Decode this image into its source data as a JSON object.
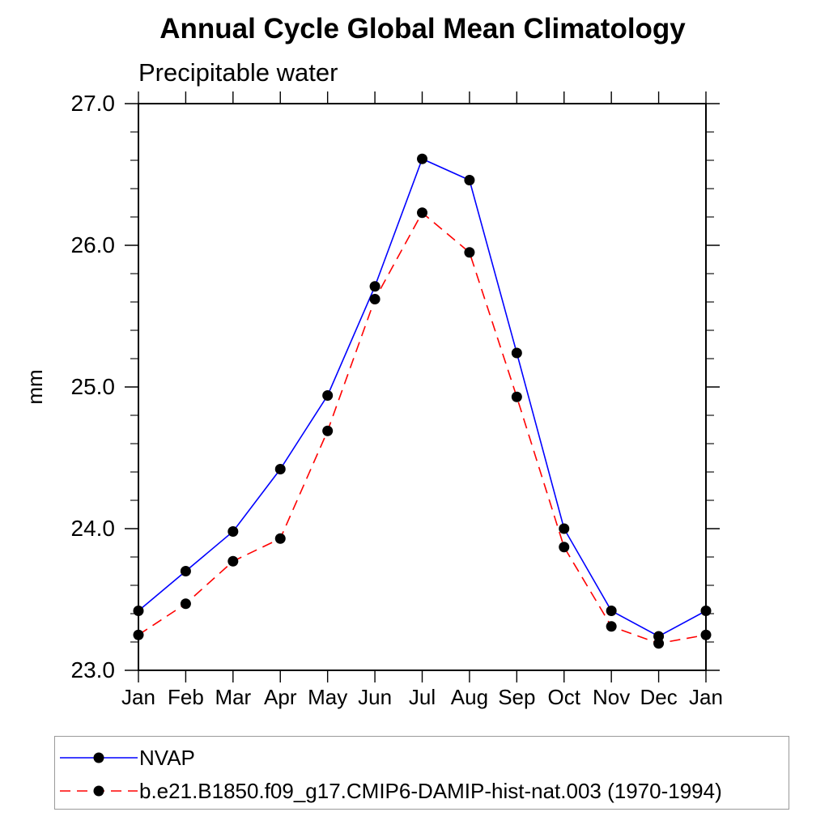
{
  "chart_data": {
    "type": "line",
    "title": "Annual Cycle Global Mean Climatology",
    "subtitle": "Precipitable water",
    "ylabel": "mm",
    "unit": "mm",
    "categories": [
      "Jan",
      "Feb",
      "Mar",
      "Apr",
      "May",
      "Jun",
      "Jul",
      "Aug",
      "Sep",
      "Oct",
      "Nov",
      "Dec",
      "Jan"
    ],
    "ylim": [
      23.0,
      27.0
    ],
    "y_major_ticks": [
      23.0,
      24.0,
      25.0,
      26.0,
      27.0
    ],
    "y_tick_labels": [
      "23.0",
      "24.0",
      "25.0",
      "26.0",
      "27.0"
    ],
    "y_minor_step": 0.2,
    "grid": false,
    "legend_position": "bottom-left-box",
    "axis_color": "#000000",
    "marker_color": "#000000",
    "series": [
      {
        "name": "NVAP",
        "color": "#0000ff",
        "style": "solid",
        "marker": "circle",
        "values": [
          23.42,
          23.7,
          23.98,
          24.42,
          24.94,
          25.71,
          26.61,
          26.46,
          25.24,
          24.0,
          23.42,
          23.24,
          23.42
        ]
      },
      {
        "name": "b.e21.B1850.f09_g17.CMIP6-DAMIP-hist-nat.003 (1970-1994)",
        "color": "#ff0000",
        "style": "dashed",
        "marker": "circle",
        "values": [
          23.25,
          23.47,
          23.77,
          23.93,
          24.69,
          25.62,
          26.23,
          25.95,
          24.93,
          23.87,
          23.31,
          23.19,
          23.25
        ]
      }
    ]
  }
}
